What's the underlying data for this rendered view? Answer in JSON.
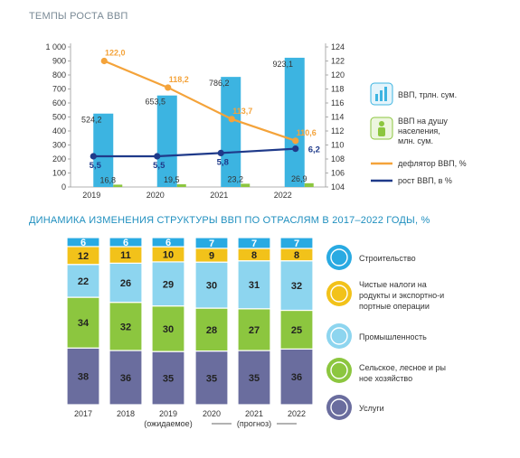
{
  "titles": {
    "top": "ТЕМПЫ РОСТА ВВП",
    "bottom": "ДИНАМИКА ИЗМЕНЕНИЯ СТРУКТУРЫ ВВП ПО ОТРАСЛЯМ В 2017–2022 ГОДЫ, %"
  },
  "colors": {
    "gdp_bar": "#3cb4e1",
    "per_capita_bar": "#8cc63f",
    "deflator_line": "#f4a33a",
    "growth_line": "#1f3a8a",
    "construction": "#29aae2",
    "net_taxes": "#f2c21a",
    "industry": "#8dd5ef",
    "agriculture": "#8cc63f",
    "services": "#6a6d9e"
  },
  "chart_data": [
    {
      "type": "bar",
      "title": "ТЕМПЫ РОСТА ВВП",
      "categories": [
        "2019",
        "2020",
        "2021",
        "2022"
      ],
      "ylim": [
        0,
        1000
      ],
      "y2lim": [
        104,
        124
      ],
      "yticks": [
        "0",
        "100",
        "200",
        "300",
        "400",
        "500",
        "600",
        "700",
        "800",
        "900",
        "1 000"
      ],
      "y2ticks": [
        "104",
        "106",
        "108",
        "110",
        "112",
        "114",
        "116",
        "118",
        "120",
        "122",
        "124"
      ],
      "series": [
        {
          "name": "ВВП, трлн. сум.",
          "kind": "bar",
          "values": [
            524.2,
            653.5,
            786.2,
            923.1
          ],
          "labels": [
            "524,2",
            "653,5",
            "786,2",
            "923,1"
          ]
        },
        {
          "name": "ВВП на душу населения, млн. сум.",
          "kind": "bar",
          "values": [
            16.8,
            19.5,
            23.2,
            26.9
          ],
          "labels": [
            "16,8",
            "19,5",
            "23,2",
            "26,9"
          ]
        },
        {
          "name": "дефлятор ВВП, %",
          "kind": "line",
          "axis": "right",
          "values": [
            122.0,
            118.2,
            113.7,
            110.6
          ],
          "labels": [
            "122,0",
            "118,2",
            "113,7",
            "110,6"
          ]
        },
        {
          "name": "рост ВВП, в %",
          "kind": "line",
          "axis": "right",
          "values": [
            5.5,
            5.5,
            5.8,
            6.2
          ],
          "labels": [
            "5,5",
            "5,5",
            "5,8",
            "6,2"
          ]
        }
      ],
      "legend": [
        {
          "label": "ВВП, трлн. сум.",
          "icon": "gdp-icon"
        },
        {
          "label": "ВВП на душу населения, млн. сум.",
          "icon": "person-icon"
        },
        {
          "label": "дефлятор ВВП, %",
          "icon": "line-swatch"
        },
        {
          "label": "рост ВВП, в %",
          "icon": "line-swatch"
        }
      ]
    },
    {
      "type": "bar",
      "stacked": true,
      "title": "ДИНАМИКА ИЗМЕНЕНИЯ СТРУКТУРЫ ВВП ПО ОТРАСЛЯМ В 2017–2022 ГОДЫ, %",
      "categories": [
        "2017",
        "2018",
        "2019",
        "2020",
        "2021",
        "2022"
      ],
      "category_notes": {
        "2019": "(ожидаемое)",
        "2020-2022": "(прогноз)"
      },
      "series": [
        {
          "name": "Услуги",
          "values": [
            38,
            36,
            35,
            35,
            35,
            36
          ]
        },
        {
          "name": "Сельское, лесное и рыбное хозяйство",
          "values": [
            34,
            32,
            30,
            28,
            27,
            25
          ]
        },
        {
          "name": "Промышленность",
          "values": [
            22,
            26,
            29,
            30,
            31,
            32
          ]
        },
        {
          "name": "Чистые налоги на продукты и экспортно-импортные операции",
          "values": [
            12,
            11,
            10,
            9,
            8,
            8
          ]
        },
        {
          "name": "Строительство",
          "values": [
            6,
            6,
            6,
            7,
            7,
            7
          ]
        }
      ],
      "legend": [
        {
          "label": "Строительство",
          "icon": "crane-icon"
        },
        {
          "label": "Чистые налоги на продукты и экспортно-импортные операции",
          "icon": "tax-icon"
        },
        {
          "label": "Промышленность",
          "icon": "gear-icon"
        },
        {
          "label": "Сельское, лесное и рыбное хозяйство",
          "icon": "tree-icon"
        },
        {
          "label": "Услуги",
          "icon": "tools-icon"
        }
      ]
    }
  ]
}
